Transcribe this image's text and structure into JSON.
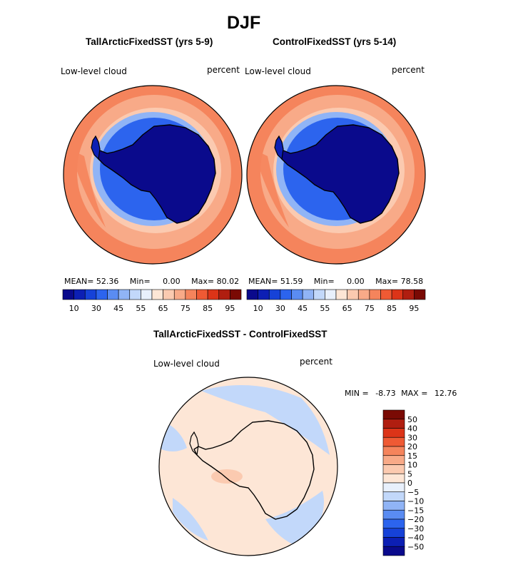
{
  "figure": {
    "title": "DJF"
  },
  "panels": [
    {
      "title": "TallArcticFixedSST (yrs 5-9)",
      "variable": "Low-level cloud",
      "units": "percent",
      "stats": {
        "mean_label": "MEAN=",
        "mean": "52.36",
        "min_label": "Min=",
        "min": "0.00",
        "max_label": "Max=",
        "max": "80.02"
      }
    },
    {
      "title": "ControlFixedSST (yrs 5-14)",
      "variable": "Low-level cloud",
      "units": "percent",
      "stats": {
        "mean_label": "MEAN=",
        "mean": "51.59",
        "min_label": "Min=",
        "min": "0.00",
        "max_label": "Max=",
        "max": "78.58"
      }
    },
    {
      "title": "TallArcticFixedSST - ControlFixedSST",
      "variable": "Low-level cloud",
      "units": "percent",
      "stats": {
        "min_label": "MIN =",
        "min": "-8.73",
        "max_label": "MAX =",
        "max": "12.76"
      }
    }
  ],
  "colorbar_abs": {
    "tick_labels": [
      "10",
      "30",
      "45",
      "55",
      "65",
      "75",
      "85",
      "95"
    ],
    "colors": [
      "#0a0a8c",
      "#0c1fb4",
      "#1642d8",
      "#2c64ee",
      "#5a8cf2",
      "#90b4f6",
      "#c2d8fa",
      "#e8f0fc",
      "#fde6d6",
      "#fbcab0",
      "#f8aa88",
      "#f5845c",
      "#ef5a34",
      "#dc3418",
      "#b01e10",
      "#7a0a04"
    ]
  },
  "colorbar_diff": {
    "tick_labels": [
      "50",
      "40",
      "30",
      "20",
      "15",
      "10",
      "5",
      "0",
      "−5",
      "−10",
      "−15",
      "−20",
      "−30",
      "−40",
      "−50"
    ],
    "colors": [
      "#7a0a04",
      "#b01e10",
      "#dc3418",
      "#ef5a34",
      "#f5845c",
      "#f8aa88",
      "#fbcab0",
      "#fde6d6",
      "#e8f0fc",
      "#c2d8fa",
      "#90b4f6",
      "#5a8cf2",
      "#2c64ee",
      "#1642d8",
      "#0c1fb4",
      "#0a0a8c"
    ]
  },
  "map_colors": {
    "ocean_high": "#f5845c",
    "ocean_mid": "#f8aa88",
    "ocean_low": "#fbcab0",
    "ice_edge": "#90b4f6",
    "ice_mid": "#2c64ee",
    "ice_core": "#0c1fb4",
    "continent": "#0a0a8c",
    "diff_pos": "#fde6d6",
    "diff_neg": "#c2d8fa",
    "diff_pos2": "#fbcab0"
  }
}
